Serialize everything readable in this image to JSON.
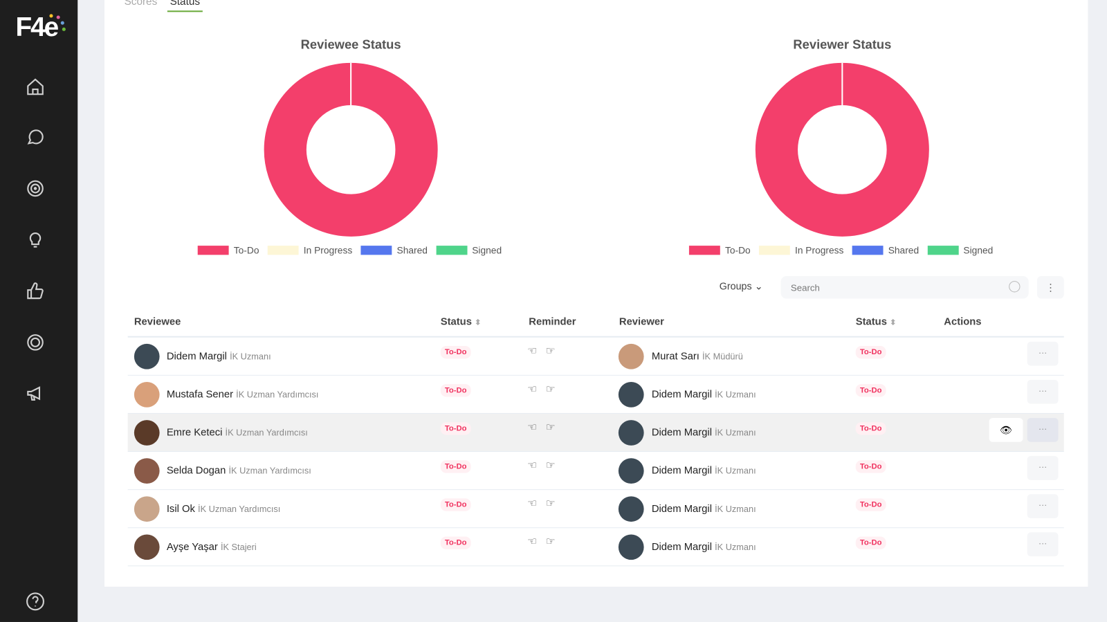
{
  "brand": {
    "logo": "F4e"
  },
  "tabs": [
    {
      "label": "Scores"
    },
    {
      "label": "Status"
    }
  ],
  "legend_labels": [
    "To-Do",
    "In Progress",
    "Shared",
    "Signed"
  ],
  "colors": {
    "todo": "#f33f6b",
    "inprogress": "#fdf6d6",
    "shared": "#5577ee",
    "signed": "#4fd48a",
    "accent": "#6aaa3a"
  },
  "chart_data": [
    {
      "type": "pie",
      "title": "Reviewee Status",
      "categories": [
        "To-Do",
        "In Progress",
        "Shared",
        "Signed"
      ],
      "values": [
        6,
        0,
        0,
        0
      ],
      "legend": "bottom"
    },
    {
      "type": "pie",
      "title": "Reviewer Status",
      "categories": [
        "To-Do",
        "In Progress",
        "Shared",
        "Signed"
      ],
      "values": [
        6,
        0,
        0,
        0
      ],
      "legend": "bottom"
    }
  ],
  "toolbar": {
    "groups_label": "Groups",
    "search_placeholder": "Search"
  },
  "table": {
    "headers": [
      "Reviewee",
      "Status",
      "Reminder",
      "Reviewer",
      "Status",
      "Actions"
    ],
    "rows": [
      {
        "reviewee": "Didem Margil",
        "reviewee_role": "İK Uzmanı",
        "status": "To-Do",
        "reviewer": "Murat Sarı",
        "reviewer_role": "İK Müdürü",
        "reviewer_status": "To-Do"
      },
      {
        "reviewee": "Mustafa Sener",
        "reviewee_role": "İK Uzman Yardımcısı",
        "status": "To-Do",
        "reviewer": "Didem Margil",
        "reviewer_role": "İK Uzmanı",
        "reviewer_status": "To-Do"
      },
      {
        "reviewee": "Emre Keteci",
        "reviewee_role": "İK Uzman Yardımcısı",
        "status": "To-Do",
        "reviewer": "Didem Margil",
        "reviewer_role": "İK Uzmanı",
        "reviewer_status": "To-Do"
      },
      {
        "reviewee": "Selda Dogan",
        "reviewee_role": "İK Uzman Yardımcısı",
        "status": "To-Do",
        "reviewer": "Didem Margil",
        "reviewer_role": "İK Uzmanı",
        "reviewer_status": "To-Do"
      },
      {
        "reviewee": "Isil Ok",
        "reviewee_role": "İK Uzman Yardımcısı",
        "status": "To-Do",
        "reviewer": "Didem Margil",
        "reviewer_role": "İK Uzmanı",
        "reviewer_status": "To-Do"
      },
      {
        "reviewee": "Ayşe Yaşar",
        "reviewee_role": "İK Stajeri",
        "status": "To-Do",
        "reviewer": "Didem Margil",
        "reviewer_role": "İK Uzmanı",
        "reviewer_status": "To-Do"
      }
    ]
  }
}
